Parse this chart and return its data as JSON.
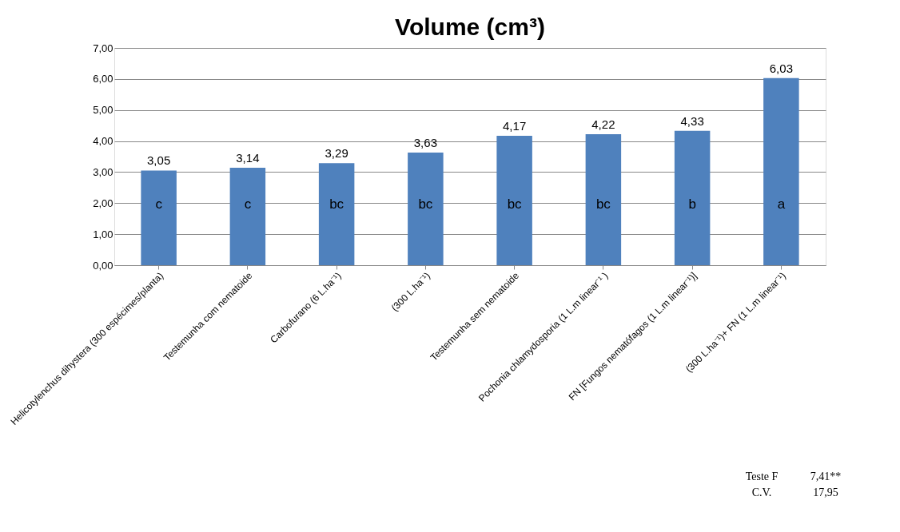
{
  "chart_data": {
    "type": "bar",
    "title": "Volume (cm³)",
    "categories": [
      "Helicotylenchus dihystera (300 espécimes/planta)",
      "Testemunha com nematoide",
      "Carbofurano (6 L.ha⁻¹)",
      "(300 L.ha⁻¹)",
      "Testemunha sem nematoide",
      "Pochonia chlamydosporia (1 L.m linear⁻¹ )",
      "FN [Fungos nematófagos (1 L.m linear⁻¹)]",
      "(300 L.ha⁻¹)+ FN (1 L.m linear⁻¹)"
    ],
    "values": [
      3.05,
      3.14,
      3.29,
      3.63,
      4.17,
      4.22,
      4.33,
      6.03
    ],
    "value_labels": [
      "3,05",
      "3,14",
      "3,29",
      "3,63",
      "4,17",
      "4,22",
      "4,33",
      "6,03"
    ],
    "color": "#4f81bd",
    "ylim": [
      0,
      7
    ],
    "yticks": [
      {
        "value": 0,
        "label": "0,00"
      },
      {
        "value": 1,
        "label": "1,00"
      },
      {
        "value": 2,
        "label": "2,00"
      },
      {
        "value": 3,
        "label": "3,00"
      },
      {
        "value": 4,
        "label": "4,00"
      },
      {
        "value": 5,
        "label": "5,00"
      },
      {
        "value": 6,
        "label": "6,00"
      },
      {
        "value": 7,
        "label": "7,00"
      }
    ],
    "grid": "y",
    "annotations": [
      "c",
      "c",
      "bc",
      "bc",
      "bc",
      "bc",
      "b",
      "a",
      "Teste F",
      "7,41**",
      "C.V.",
      "17,95"
    ]
  }
}
